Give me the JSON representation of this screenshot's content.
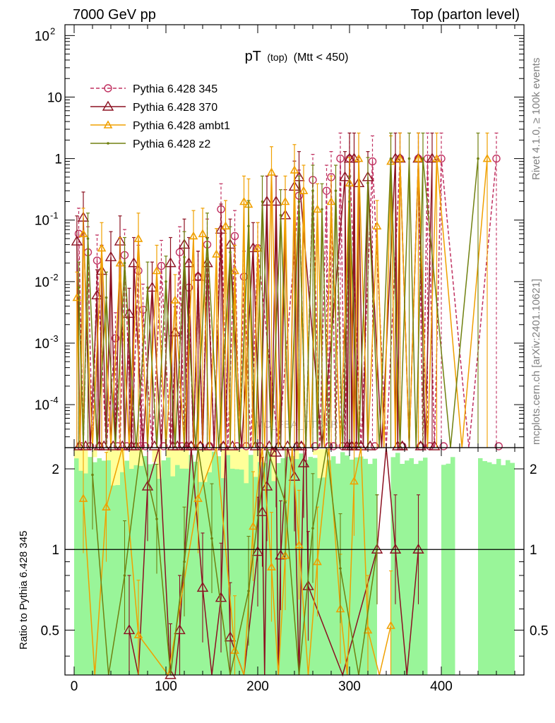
{
  "header": {
    "left": "7000 GeV pp",
    "right": "Top (parton level)"
  },
  "side_labels": {
    "rivet": "Rivet 4.1.0, ≥ 100k events",
    "mcplots": "mcplots.cern.ch [arXiv:2401.10621]"
  },
  "watermark": "MC_FBA_TTBAR",
  "colors": {
    "p345": "#c03060",
    "p370": "#8b1020",
    "ambt1": "#f0a000",
    "z2": "#708010",
    "band_yellow": "#ffff99",
    "band_green": "#99f599"
  },
  "chart_data": [
    {
      "type": "line",
      "panel": "main",
      "title": "pT",
      "title_sub": "(top)",
      "title_suffix": "(Mtt < 450)",
      "xlabel": "",
      "ylabel": "",
      "xlim": [
        -10,
        490
      ],
      "ylim": [
        2e-05,
        150
      ],
      "yscale": "log",
      "ytick_labels": [
        "10^2",
        "10",
        "1",
        "10^-1",
        "10^-2",
        "10^-3",
        "10^-4"
      ],
      "legend_position": "top-left",
      "series": [
        {
          "name": "Pythia 6.428 345",
          "key": "p345",
          "marker": "circle",
          "dashed": true,
          "x": [
            5,
            15,
            25,
            45,
            55,
            70,
            75,
            95,
            115,
            125,
            135,
            145,
            160,
            175,
            185,
            200,
            245,
            260,
            275,
            280,
            290,
            300,
            325,
            355,
            375,
            385,
            400,
            460
          ],
          "y": [
            0.06,
            0.03,
            0.022,
            0.0012,
            0.027,
            0.015,
            0.0035,
            0.018,
            0.03,
            0.008,
            0.012,
            0.04,
            0.15,
            0.055,
            0.012,
            0.035,
            0.25,
            0.45,
            0.3,
            0.5,
            1.0,
            1.0,
            0.9,
            1.0,
            1.0,
            1.0,
            1.0,
            1.0
          ]
        },
        {
          "name": "Pythia 6.428 370",
          "key": "p370",
          "marker": "triangle",
          "dashed": false,
          "x": [
            3,
            10,
            25,
            30,
            40,
            50,
            60,
            65,
            85,
            105,
            110,
            120,
            125,
            135,
            145,
            160,
            170,
            195,
            210,
            220,
            230,
            240,
            245,
            295,
            300,
            305,
            310,
            320,
            350,
            355,
            375,
            390
          ],
          "y": [
            0.045,
            0.11,
            0.006,
            0.015,
            0.025,
            0.045,
            0.003,
            0.02,
            0.008,
            0.02,
            0.0015,
            0.04,
            0.02,
            0.012,
            0.02,
            0.07,
            0.04,
            0.035,
            0.2,
            0.2,
            0.12,
            0.35,
            0.5,
            0.5,
            1.0,
            1.0,
            0.4,
            0.5,
            1.0,
            1.0,
            1.0,
            1.0
          ]
        },
        {
          "name": "Pythia 6.428 ambt1",
          "key": "ambt1",
          "marker": "triangle-filled",
          "dashed": false,
          "x": [
            3,
            10,
            30,
            50,
            70,
            90,
            110,
            130,
            140,
            155,
            165,
            175,
            185,
            190,
            200,
            215,
            230,
            240,
            250,
            265,
            280,
            300,
            310,
            330,
            345,
            355,
            375,
            395,
            450
          ],
          "y": [
            0.0055,
            0.06,
            0.035,
            0.02,
            0.05,
            0.015,
            0.005,
            0.055,
            0.06,
            0.028,
            0.08,
            0.015,
            0.2,
            0.18,
            0.035,
            0.6,
            0.2,
            0.65,
            0.3,
            0.15,
            0.2,
            0.4,
            1.0,
            0.08,
            0.9,
            1.0,
            1.0,
            1.0,
            1.0
          ]
        },
        {
          "name": "Pythia 6.428 z2",
          "key": "z2",
          "marker": "dot",
          "dashed": false,
          "x": [
            5,
            15,
            35,
            55,
            80,
            100,
            120,
            145,
            170,
            190,
            205,
            225,
            245,
            260,
            270,
            285,
            300,
            320,
            345,
            365,
            380,
            440
          ],
          "y": [
            0.008,
            0.05,
            0.0055,
            0.02,
            0.008,
            0.01,
            0.025,
            0.05,
            0.03,
            0.08,
            0.2,
            0.12,
            0.2,
            0.3,
            0.15,
            0.3,
            0.2,
            0.4,
            1.0,
            1.0,
            1.0,
            1.0
          ]
        }
      ]
    },
    {
      "type": "line",
      "panel": "ratio",
      "ylabel": "Ratio to Pythia 6.428 345",
      "xlim": [
        -10,
        490
      ],
      "ylim": [
        0.34,
        2.4
      ],
      "yscale": "log",
      "xtick_labels": [
        "0",
        "100",
        "200",
        "300",
        "400"
      ],
      "ytick_labels": [
        "0.5",
        "1",
        "2"
      ],
      "series": [
        {
          "name": "Pythia 6.428 370",
          "key": "p370",
          "x": [
            60,
            80,
            105,
            115,
            140,
            160,
            170,
            200,
            205,
            210,
            220,
            225,
            240,
            250,
            255,
            330,
            350,
            375
          ],
          "y": [
            0.5,
            1.72,
            0.33,
            0.5,
            0.72,
            0.66,
            0.47,
            0.98,
            1.38,
            1.72,
            2.3,
            0.95,
            1.87,
            2.1,
            0.73,
            1.0,
            1.0,
            1.0
          ]
        },
        {
          "name": "Pythia 6.428 ambt1",
          "key": "ambt1",
          "x": [
            10,
            35,
            70,
            135,
            175,
            195,
            215,
            230,
            245,
            265,
            290,
            305,
            320,
            345
          ],
          "y": [
            1.55,
            1.44,
            0.48,
            1.55,
            0.42,
            1.22,
            0.86,
            0.95,
            1.04,
            0.9,
            0.6,
            1.8,
            0.5,
            0.52
          ]
        },
        {
          "name": "Pythia 6.428 z2",
          "key": "z2",
          "x": [
            20,
            55,
            90,
            120,
            150,
            190,
            230,
            260,
            290,
            330
          ],
          "y": [
            1.9,
            0.8,
            1.3,
            0.9,
            1.1,
            0.7,
            1.5,
            1.2,
            0.85,
            1.0
          ]
        }
      ]
    }
  ]
}
